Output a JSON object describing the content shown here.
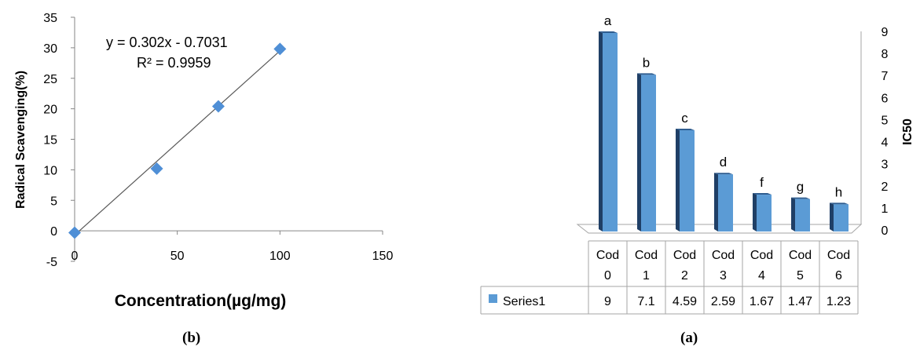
{
  "chart_data": [
    {
      "type": "scatter",
      "panel_label": "(b)",
      "xlabel": "Concentration(µg/mg)",
      "ylabel": "Radical Scavenging(%)",
      "xlim": [
        0,
        150
      ],
      "ylim": [
        -5,
        35
      ],
      "xticks": [
        "0",
        "50",
        "100",
        "150"
      ],
      "yticks": [
        "-5",
        "0",
        "5",
        "10",
        "15",
        "20",
        "25",
        "30",
        "35"
      ],
      "points": [
        {
          "x": 0,
          "y": -0.3
        },
        {
          "x": 40,
          "y": 10.2
        },
        {
          "x": 70,
          "y": 20.4
        },
        {
          "x": 100,
          "y": 29.8
        }
      ],
      "trendline": {
        "slope": 0.302,
        "intercept": -0.7031,
        "x_range": [
          0,
          100
        ]
      },
      "annotations": [
        "y = 0.302x - 0.7031",
        "R² = 0.9959"
      ],
      "marker_color": "#4f8fd6",
      "grid": false
    },
    {
      "type": "bar",
      "style": "3d",
      "panel_label": "(a)",
      "ylabel": "IC50",
      "ylim": [
        0,
        9
      ],
      "yticks": [
        "0",
        "1",
        "2",
        "3",
        "4",
        "5",
        "6",
        "7",
        "8",
        "9"
      ],
      "categories_line1": [
        "Cod",
        "Cod",
        "Cod",
        "Cod",
        "Cod",
        "Cod",
        "Cod"
      ],
      "categories_line2": [
        "0",
        "1",
        "2",
        "3",
        "4",
        "5",
        "6"
      ],
      "bar_labels": [
        "a",
        "b",
        "c",
        "d",
        "f",
        "g",
        "h"
      ],
      "series": [
        {
          "name": "Series1",
          "values": [
            9,
            7.1,
            4.59,
            2.59,
            1.67,
            1.47,
            1.23
          ],
          "value_labels": [
            "9",
            "7.1",
            "4.59",
            "2.59",
            "1.67",
            "1.47",
            "1.23"
          ],
          "color": "#5b9bd5"
        }
      ],
      "legend": "data-table"
    }
  ]
}
